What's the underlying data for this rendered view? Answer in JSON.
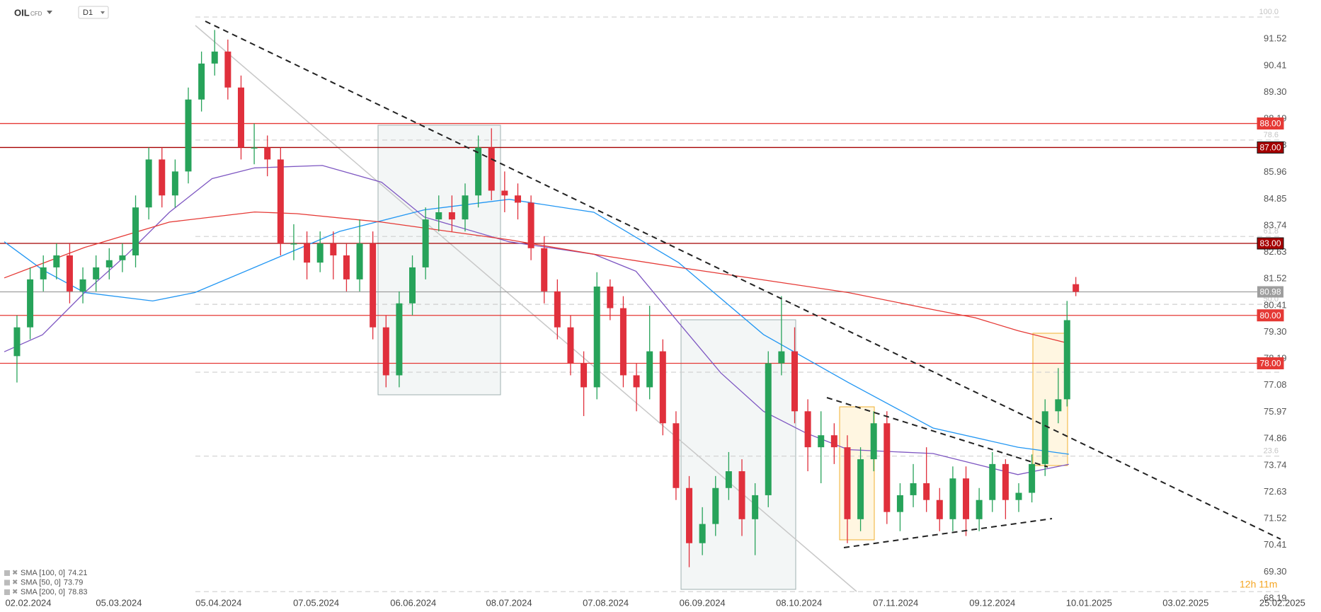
{
  "header": {
    "symbol": "OIL",
    "instrument_type": "CFD",
    "interval": "D1"
  },
  "timer": "12h 11m",
  "chart_data": {
    "type": "candlestick",
    "up_color": "#27a35a",
    "down_color": "#e0303c",
    "xlim": [
      -3.86,
      296.8
    ],
    "ylim": [
      67.63,
      93.15
    ],
    "xticks": [
      {
        "value": 0,
        "label": "02.02.2024"
      },
      {
        "value": 23.2,
        "label": "05.03.2024"
      },
      {
        "value": 45.9,
        "label": "05.04.2024"
      },
      {
        "value": 68.1,
        "label": "07.05.2024"
      },
      {
        "value": 90.2,
        "label": "06.06.2024"
      },
      {
        "value": 112,
        "label": "08.07.2024"
      },
      {
        "value": 134,
        "label": "07.08.2024"
      },
      {
        "value": 156,
        "label": "06.09.2024"
      },
      {
        "value": 178,
        "label": "08.10.2024"
      },
      {
        "value": 200,
        "label": "07.11.2024"
      },
      {
        "value": 222,
        "label": "09.12.2024"
      },
      {
        "value": 244,
        "label": "10.01.2025"
      },
      {
        "value": 266,
        "label": "03.02.2025"
      },
      {
        "value": 288,
        "label": "25.02.2025"
      }
    ],
    "yticks": [
      91.52,
      90.41,
      {
        "value": 89.3,
        "label": "89.30"
      },
      88.19,
      87.08,
      85.96,
      84.85,
      83.74,
      82.63,
      81.52,
      80.41,
      {
        "value": 79.3,
        "label": "79.30"
      },
      78.19,
      77.08,
      75.97,
      74.86,
      73.74,
      72.63,
      71.52,
      70.41,
      {
        "value": 69.3,
        "label": "69.30"
      },
      68.19
    ],
    "x": [
      0,
      3,
      6,
      9,
      12,
      15,
      18,
      21,
      24,
      27,
      30,
      33,
      36,
      39,
      42,
      45,
      48,
      51,
      54,
      57,
      60,
      63,
      66,
      69,
      72,
      75,
      78,
      81,
      84,
      87,
      90,
      93,
      96,
      99,
      102,
      105,
      108,
      111,
      114,
      117,
      120,
      123,
      126,
      129,
      132,
      135,
      138,
      141,
      144,
      147,
      150,
      153,
      156,
      159,
      162,
      165,
      168,
      171,
      174,
      177,
      180,
      183,
      186,
      189,
      192,
      195,
      198,
      201,
      204,
      207,
      210,
      213,
      216,
      219,
      222,
      225,
      228,
      231,
      234,
      237,
      239,
      241
    ],
    "open": [
      78.3,
      79.5,
      81.5,
      82,
      82.5,
      81,
      81.5,
      82,
      82.3,
      82.5,
      84.5,
      86.5,
      85,
      86,
      89,
      90.5,
      91,
      89.5,
      87,
      87,
      86.5,
      83,
      83,
      82.2,
      83,
      82.5,
      81.5,
      83,
      79.5,
      77.5,
      80.5,
      82,
      84,
      84.3,
      84,
      85,
      87,
      85.2,
      85,
      84.7,
      82.8,
      81,
      79.5,
      78,
      77,
      81.2,
      80.3,
      77.5,
      77,
      78.5,
      75.5,
      72.8,
      70.5,
      71.3,
      72.8,
      73.5,
      71.5,
      72.5,
      78,
      78.5,
      76,
      74.5,
      75,
      74.5,
      71.5,
      74,
      75.5,
      71.8,
      72.5,
      73,
      72.3,
      71.5,
      73.2,
      71.5,
      72.3,
      73.8,
      72.3,
      72.6,
      73.8,
      76,
      76.5,
      81.3
    ],
    "high": [
      80.0,
      82.0,
      82.5,
      83.0,
      83.0,
      82.0,
      82.5,
      82.8,
      83.0,
      85.0,
      87.0,
      87.0,
      86.5,
      89.5,
      91.0,
      91.9,
      91.5,
      90.0,
      88.0,
      87.5,
      87.0,
      83.8,
      83.5,
      83.5,
      83.5,
      83.0,
      84.0,
      83.5,
      80.0,
      81.0,
      82.5,
      84.5,
      85.0,
      85.0,
      85.5,
      87.5,
      87.8,
      86.0,
      85.5,
      85.0,
      83.3,
      81.5,
      80.0,
      78.5,
      81.8,
      81.5,
      80.8,
      78.0,
      80.4,
      79.0,
      76.0,
      73.3,
      72.0,
      73.3,
      74.3,
      74.0,
      73.0,
      78.5,
      80.8,
      79.5,
      76.5,
      76.0,
      75.5,
      75.0,
      74.5,
      76.0,
      76.0,
      73.0,
      73.8,
      74.5,
      72.8,
      73.7,
      73.7,
      72.8,
      74.3,
      74.0,
      73.0,
      74.2,
      76.5,
      77.8,
      80.6,
      81.6
    ],
    "low": [
      77.2,
      79.0,
      81.0,
      81.5,
      80.5,
      80.5,
      81.0,
      81.5,
      81.8,
      82.0,
      84.0,
      84.5,
      84.5,
      85.5,
      88.5,
      90.0,
      89.0,
      86.5,
      86.3,
      85.8,
      82.5,
      82.3,
      81.5,
      81.8,
      81.5,
      81.0,
      81.0,
      79.0,
      77.0,
      77.0,
      80.0,
      81.5,
      83.5,
      83.5,
      83.5,
      84.5,
      84.8,
      84.3,
      84.0,
      82.3,
      80.5,
      79.0,
      77.5,
      75.8,
      76.5,
      79.8,
      77.0,
      76.0,
      76.5,
      75.0,
      72.3,
      69.5,
      70.0,
      70.8,
      72.3,
      70.8,
      70.0,
      72.0,
      77.5,
      75.5,
      73.5,
      73.0,
      73.8,
      70.5,
      71.0,
      73.5,
      71.3,
      71.0,
      72.0,
      71.8,
      71.0,
      71.0,
      70.8,
      71.0,
      71.8,
      71.5,
      71.8,
      72.2,
      73.3,
      75.5,
      76.2,
      80.8
    ],
    "close": [
      79.5,
      81.5,
      82,
      82.5,
      81,
      81.5,
      82,
      82.3,
      82.5,
      84.5,
      86.5,
      85,
      86,
      89,
      90.5,
      91,
      89.5,
      87,
      87,
      86.5,
      83,
      83,
      82.2,
      83,
      82.5,
      81.5,
      83,
      79.5,
      77.5,
      80.5,
      82,
      84,
      84.3,
      84,
      85,
      87,
      85.2,
      85,
      84.7,
      82.8,
      81,
      79.5,
      78,
      77,
      81.2,
      80.3,
      77.5,
      77,
      78.5,
      75.5,
      72.8,
      70.5,
      71.3,
      72.8,
      73.5,
      71.5,
      72.5,
      78,
      78.5,
      76,
      74.5,
      75,
      74.5,
      71.5,
      74,
      75.5,
      71.8,
      72.5,
      73,
      72.3,
      71.5,
      73.2,
      71.5,
      72.3,
      73.8,
      72.3,
      72.6,
      73.8,
      76,
      76.5,
      79.8,
      80.98
    ],
    "series": [
      {
        "name": "SMA [100, 0]",
        "value": 74.21,
        "color": "#2196f3",
        "x": [
          -2.9,
          5.8,
          15.4,
          30.9,
          40.5,
          54.1,
          73.4,
          92.7,
          112.0,
          131.3,
          150.6,
          169.9,
          189.2,
          208.5,
          227.8,
          239.4
        ],
        "values": [
          83.07,
          81.9,
          80.95,
          80.6,
          80.95,
          82.0,
          83.5,
          84.4,
          84.84,
          84.3,
          82.2,
          79.2,
          77.2,
          75.3,
          74.5,
          74.21
        ]
      },
      {
        "name": "SMA [50, 0]",
        "value": 73.79,
        "color": "#7e57c2",
        "x": [
          -2.9,
          5.8,
          15.4,
          25.1,
          34.7,
          44.4,
          54.1,
          69.5,
          83.0,
          92.7,
          112.0,
          131.3,
          140.9,
          150.6,
          160.2,
          169.9,
          179.5,
          189.2,
          208.5,
          227.8,
          239.4
        ],
        "values": [
          78.48,
          79.19,
          80.95,
          82.55,
          84.3,
          85.7,
          86.15,
          86.25,
          85.55,
          84.1,
          83.07,
          82.55,
          81.84,
          79.7,
          77.6,
          76.0,
          75.1,
          74.4,
          74.24,
          73.36,
          73.79
        ]
      },
      {
        "name": "SMA [200, 0]",
        "value": 78.83,
        "color": "#e53935",
        "x": [
          -2.9,
          15.4,
          34.7,
          54.1,
          63.7,
          83.0,
          112.0,
          131.3,
          150.6,
          169.9,
          189.2,
          208.5,
          218.1,
          227.8,
          239.4
        ],
        "values": [
          81.56,
          82.83,
          83.89,
          84.31,
          84.24,
          83.89,
          83.15,
          82.55,
          82.0,
          81.48,
          80.95,
          80.24,
          79.9,
          79.36,
          78.83
        ]
      }
    ],
    "levels": [
      {
        "value": 88,
        "label": "88.00",
        "color": "#e53935"
      },
      {
        "value": 87,
        "label": "87.00",
        "color": "#a50000"
      },
      {
        "value": 83,
        "label": "83.00",
        "color": "#a50000"
      },
      {
        "value": 80,
        "label": "80.00",
        "color": "#e53935"
      },
      {
        "value": 78,
        "label": "78.00",
        "color": "#e53935"
      }
    ],
    "current_price": 80.98,
    "fib_levels": [
      {
        "value": 92.44,
        "label": "100.0"
      },
      {
        "value": 87.31,
        "label": "78.6"
      },
      {
        "value": 83.29,
        "label": "61.8"
      },
      {
        "value": 80.46,
        "label": "50.0"
      },
      {
        "value": 77.63,
        "label": "38.2"
      },
      {
        "value": 74.13,
        "label": "23.6"
      },
      {
        "value": 68.48
      }
    ]
  }
}
